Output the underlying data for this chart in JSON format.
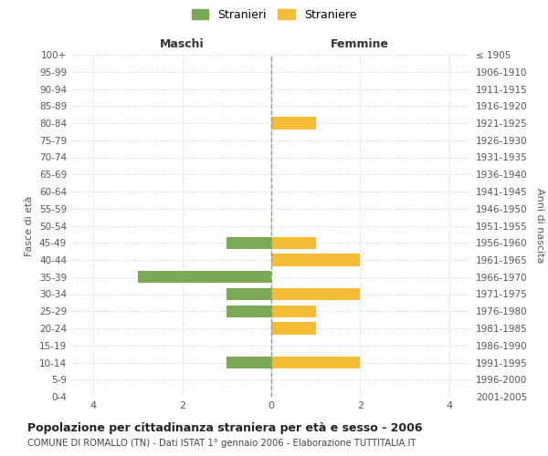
{
  "age_groups": [
    "100+",
    "95-99",
    "90-94",
    "85-89",
    "80-84",
    "75-79",
    "70-74",
    "65-69",
    "60-64",
    "55-59",
    "50-54",
    "45-49",
    "40-44",
    "35-39",
    "30-34",
    "25-29",
    "20-24",
    "15-19",
    "10-14",
    "5-9",
    "0-4"
  ],
  "birth_years": [
    "≤ 1905",
    "1906-1910",
    "1911-1915",
    "1916-1920",
    "1921-1925",
    "1926-1930",
    "1931-1935",
    "1936-1940",
    "1941-1945",
    "1946-1950",
    "1951-1955",
    "1956-1960",
    "1961-1965",
    "1966-1970",
    "1971-1975",
    "1976-1980",
    "1981-1985",
    "1986-1990",
    "1991-1995",
    "1996-2000",
    "2001-2005"
  ],
  "maschi": [
    0,
    0,
    0,
    0,
    0,
    0,
    0,
    0,
    0,
    0,
    0,
    1,
    0,
    3,
    1,
    1,
    0,
    0,
    1,
    0,
    0
  ],
  "femmine": [
    0,
    0,
    0,
    0,
    1,
    0,
    0,
    0,
    0,
    0,
    0,
    1,
    2,
    0,
    2,
    1,
    1,
    0,
    2,
    0,
    0
  ],
  "maschi_color": "#7aaa55",
  "femmine_color": "#f5bc35",
  "title": "Popolazione per cittadinanza straniera per età e sesso - 2006",
  "subtitle": "COMUNE DI ROMALLO (TN) - Dati ISTAT 1° gennaio 2006 - Elaborazione TUTTITALIA.IT",
  "xlabel_left": "Maschi",
  "xlabel_right": "Femmine",
  "ylabel_left": "Fasce di età",
  "ylabel_right": "Anni di nascita",
  "legend_maschi": "Stranieri",
  "legend_femmine": "Straniere",
  "xlim": 4.5,
  "background_color": "#ffffff",
  "grid_color": "#cccccc",
  "center_line_color": "#999966"
}
